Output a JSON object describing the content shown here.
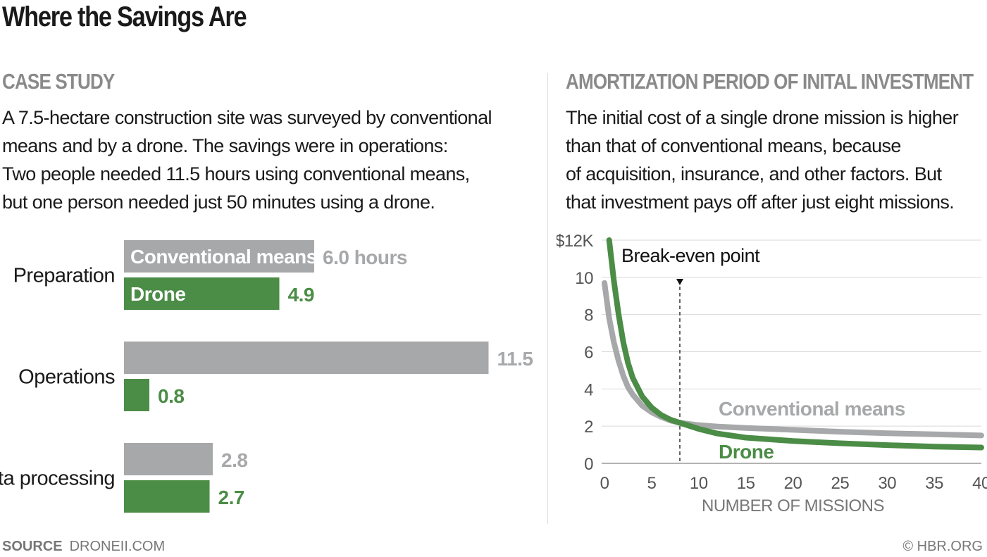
{
  "title": "Where the Savings Are",
  "left_panel": {
    "heading": "CASE STUDY",
    "body_lines": [
      "A 7.5-hectare construction site was surveyed by conventional",
      "means and by a drone. The savings were in operations:",
      "Two people needed 11.5 hours using conventional means,",
      "but one person needed just 50 minutes using a drone."
    ]
  },
  "right_panel": {
    "heading": "AMORTIZATION PERIOD OF INITAL INVESTMENT",
    "body_lines": [
      "The initial cost of a single drone mission is higher",
      "than that of conventional means, because",
      "of acquisition, insurance, and other factors. But",
      "that investment pays off after just eight missions."
    ]
  },
  "footer": {
    "source_label": "SOURCE",
    "source_value": "DRONEII.COM",
    "credit": "© HBR.ORG"
  },
  "colors": {
    "conventional": "#a7a8aa",
    "drone": "#4b8c46",
    "grid": "#d9d9d9",
    "heading_gray": "#8a8a8a"
  },
  "chart_data": [
    {
      "type": "bar",
      "orientation": "horizontal",
      "categories": [
        "Preparation",
        "Operations",
        "Data processing"
      ],
      "series": [
        {
          "name": "Conventional means",
          "values": [
            6.0,
            11.5,
            2.8
          ],
          "labels": [
            "6.0 hours",
            "11.5",
            "2.8"
          ]
        },
        {
          "name": "Drone",
          "values": [
            4.9,
            0.8,
            2.7
          ],
          "labels": [
            "4.9",
            "0.8",
            "2.7"
          ]
        }
      ],
      "unit": "hours",
      "xlim": [
        0,
        11.5
      ]
    },
    {
      "type": "line",
      "xlabel": "NUMBER OF MISSIONS",
      "ylabel": "",
      "xlim": [
        0,
        40
      ],
      "ylim": [
        0,
        12
      ],
      "x_ticks": [
        0,
        5,
        10,
        15,
        20,
        25,
        30,
        35,
        40
      ],
      "y_ticks": [
        0,
        2,
        4,
        6,
        8,
        10,
        12
      ],
      "y_tick_labels": [
        "0",
        "2",
        "4",
        "6",
        "8",
        "10",
        "$12K"
      ],
      "grid": true,
      "series": [
        {
          "name": "Conventional means",
          "points": [
            [
              0,
              9.7
            ],
            [
              0.5,
              7.8
            ],
            [
              1,
              6.5
            ],
            [
              1.5,
              5.5
            ],
            [
              2,
              4.7
            ],
            [
              2.5,
              4.1
            ],
            [
              3,
              3.7
            ],
            [
              4,
              3.1
            ],
            [
              5,
              2.75
            ],
            [
              6,
              2.5
            ],
            [
              7,
              2.3
            ],
            [
              8,
              2.18
            ],
            [
              10,
              2.05
            ],
            [
              12,
              1.98
            ],
            [
              15,
              1.9
            ],
            [
              20,
              1.8
            ],
            [
              25,
              1.7
            ],
            [
              30,
              1.62
            ],
            [
              35,
              1.56
            ],
            [
              40,
              1.5
            ]
          ]
        },
        {
          "name": "Drone",
          "points": [
            [
              0.5,
              12.0
            ],
            [
              1,
              9.8
            ],
            [
              1.5,
              8.0
            ],
            [
              2,
              6.5
            ],
            [
              2.5,
              5.4
            ],
            [
              3,
              4.6
            ],
            [
              4,
              3.6
            ],
            [
              5,
              3.0
            ],
            [
              6,
              2.6
            ],
            [
              7,
              2.35
            ],
            [
              8,
              2.18
            ],
            [
              10,
              1.85
            ],
            [
              12,
              1.6
            ],
            [
              15,
              1.38
            ],
            [
              20,
              1.2
            ],
            [
              25,
              1.08
            ],
            [
              30,
              0.98
            ],
            [
              35,
              0.9
            ],
            [
              40,
              0.85
            ]
          ]
        }
      ],
      "annotations": [
        {
          "text": "Break-even point",
          "x": 8
        }
      ]
    }
  ]
}
